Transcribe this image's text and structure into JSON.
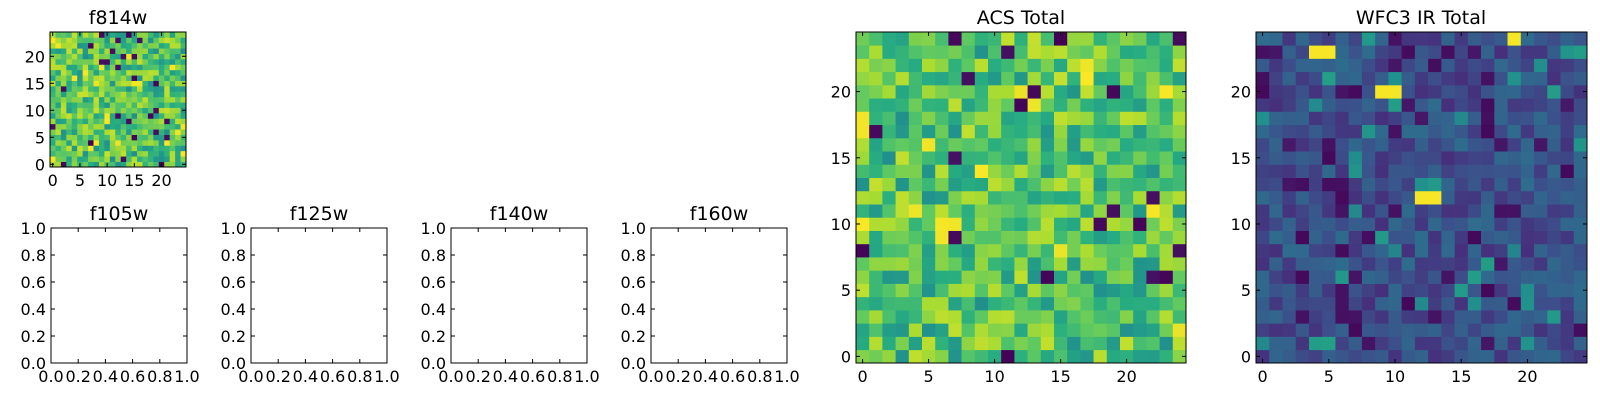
{
  "chart_data": [
    {
      "type": "heatmap",
      "title": "f814w",
      "xlabel": "",
      "ylabel": "",
      "colormap": "viridis",
      "grid": false,
      "xlim": [
        -0.5,
        24.5
      ],
      "ylim": [
        -0.5,
        24.5
      ],
      "xticks": [
        0,
        5,
        10,
        15,
        20
      ],
      "yticks": [
        0,
        5,
        10,
        15,
        20
      ],
      "xtick_labels": [
        "0",
        "5",
        "10",
        "15",
        "20"
      ],
      "ytick_labels": [
        "0",
        "5",
        "10",
        "15",
        "20"
      ],
      "resolution": 25,
      "pixel_scale": 1,
      "value_range": [
        0.0,
        1.0
      ],
      "value_profile": "high",
      "values_approximate": true
    },
    {
      "type": "empty",
      "title": "f105w",
      "xlim": [
        0,
        1
      ],
      "ylim": [
        0,
        1
      ],
      "xticks": [
        0,
        0.2,
        0.4,
        0.6,
        0.8,
        1.0
      ],
      "yticks": [
        0,
        0.2,
        0.4,
        0.6,
        0.8,
        1.0
      ],
      "xtick_labels": [
        "0.0",
        "0.2",
        "0.4",
        "0.6",
        "0.8",
        "1.0"
      ],
      "ytick_labels": [
        "0.0",
        "0.2",
        "0.4",
        "0.6",
        "0.8",
        "1.0"
      ]
    },
    {
      "type": "empty",
      "title": "f125w",
      "xlim": [
        0,
        1
      ],
      "ylim": [
        0,
        1
      ],
      "xticks": [
        0,
        0.2,
        0.4,
        0.6,
        0.8,
        1.0
      ],
      "yticks": [
        0,
        0.2,
        0.4,
        0.6,
        0.8,
        1.0
      ],
      "xtick_labels": [
        "0.0",
        "0.2",
        "0.4",
        "0.6",
        "0.8",
        "1.0"
      ],
      "ytick_labels": [
        "0.0",
        "0.2",
        "0.4",
        "0.6",
        "0.8",
        "1.0"
      ]
    },
    {
      "type": "empty",
      "title": "f140w",
      "xlim": [
        0,
        1
      ],
      "ylim": [
        0,
        1
      ],
      "xticks": [
        0,
        0.2,
        0.4,
        0.6,
        0.8,
        1.0
      ],
      "yticks": [
        0,
        0.2,
        0.4,
        0.6,
        0.8,
        1.0
      ],
      "xtick_labels": [
        "0.0",
        "0.2",
        "0.4",
        "0.6",
        "0.8",
        "1.0"
      ],
      "ytick_labels": [
        "0.0",
        "0.2",
        "0.4",
        "0.6",
        "0.8",
        "1.0"
      ]
    },
    {
      "type": "empty",
      "title": "f160w",
      "xlim": [
        0,
        1
      ],
      "ylim": [
        0,
        1
      ],
      "xticks": [
        0,
        0.2,
        0.4,
        0.6,
        0.8,
        1.0
      ],
      "yticks": [
        0,
        0.2,
        0.4,
        0.6,
        0.8,
        1.0
      ],
      "xtick_labels": [
        "0.0",
        "0.2",
        "0.4",
        "0.6",
        "0.8",
        "1.0"
      ],
      "ytick_labels": [
        "0.0",
        "0.2",
        "0.4",
        "0.6",
        "0.8",
        "1.0"
      ]
    },
    {
      "type": "heatmap",
      "title": "ACS Total",
      "colormap": "viridis",
      "grid": false,
      "xlim": [
        -0.5,
        24.5
      ],
      "ylim": [
        -0.5,
        24.5
      ],
      "xticks": [
        0,
        5,
        10,
        15,
        20
      ],
      "yticks": [
        0,
        5,
        10,
        15,
        20
      ],
      "xtick_labels": [
        "0",
        "5",
        "10",
        "15",
        "20"
      ],
      "ytick_labels": [
        "0",
        "5",
        "10",
        "15",
        "20"
      ],
      "resolution": 25,
      "pixel_scale": 1,
      "value_range": [
        0.0,
        1.0
      ],
      "value_profile": "high",
      "values_approximate": true
    },
    {
      "type": "heatmap",
      "title": "WFC3 IR Total",
      "colormap": "viridis",
      "grid": false,
      "xlim": [
        -0.5,
        24.5
      ],
      "ylim": [
        -0.5,
        24.5
      ],
      "xticks": [
        0,
        5,
        10,
        15,
        20
      ],
      "yticks": [
        0,
        5,
        10,
        15,
        20
      ],
      "xtick_labels": [
        "0",
        "5",
        "10",
        "15",
        "20"
      ],
      "ytick_labels": [
        "0",
        "5",
        "10",
        "15",
        "20"
      ],
      "resolution": 25,
      "pixel_scale": 1,
      "value_range": [
        0.0,
        1.0
      ],
      "value_profile": "low",
      "values_approximate": true,
      "bright_cells": [
        [
          4,
          23
        ],
        [
          5,
          23
        ],
        [
          9,
          20
        ],
        [
          10,
          20
        ],
        [
          12,
          12
        ],
        [
          13,
          12
        ],
        [
          19,
          24
        ]
      ]
    }
  ]
}
